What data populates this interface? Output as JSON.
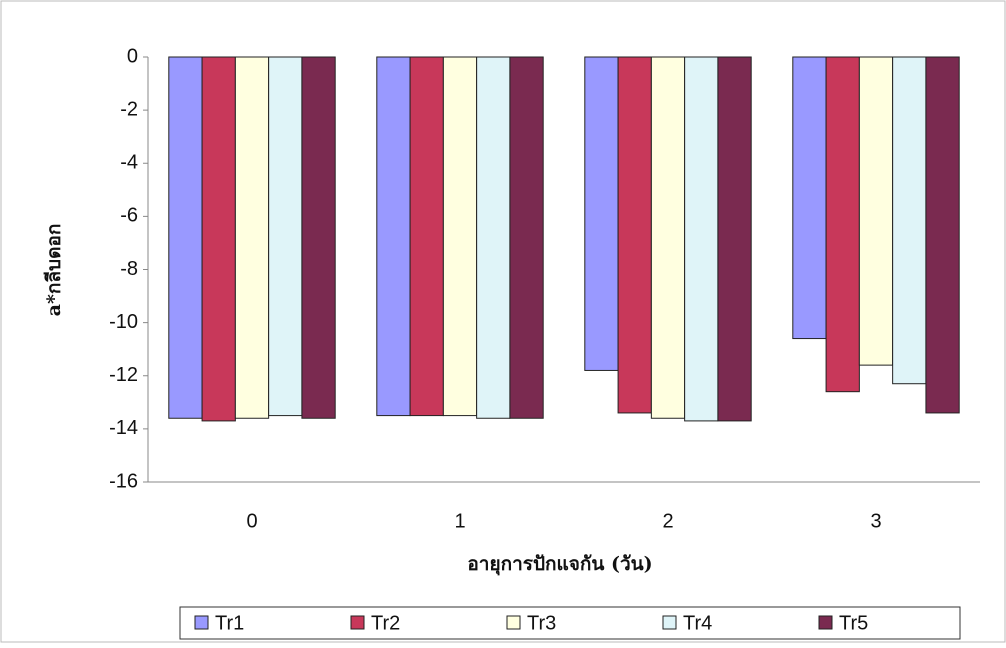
{
  "chart_data": {
    "type": "bar",
    "y_label": "a*กลีบดอก",
    "x_label": "อายุการปักแจกัน (วัน)",
    "categories": [
      "0",
      "1",
      "2",
      "3"
    ],
    "series": [
      {
        "name": "Tr1",
        "color": "#9999ff",
        "values": [
          -13.6,
          -13.5,
          -11.8,
          -10.6
        ]
      },
      {
        "name": "Tr2",
        "color": "#c8385a",
        "values": [
          -13.7,
          -13.5,
          -13.4,
          -12.6
        ]
      },
      {
        "name": "Tr3",
        "color": "#ffffe0",
        "values": [
          -13.6,
          -13.5,
          -13.6,
          -11.6
        ]
      },
      {
        "name": "Tr4",
        "color": "#dff4f8",
        "values": [
          -13.5,
          -13.6,
          -13.7,
          -12.3
        ]
      },
      {
        "name": "Tr5",
        "color": "#7a2a50",
        "values": [
          -13.6,
          -13.6,
          -13.7,
          -13.4
        ]
      }
    ],
    "ylim": [
      -16,
      0
    ],
    "yticks": [
      -16,
      -14,
      -12,
      -10,
      -8,
      -6,
      -4,
      -2,
      0
    ]
  }
}
